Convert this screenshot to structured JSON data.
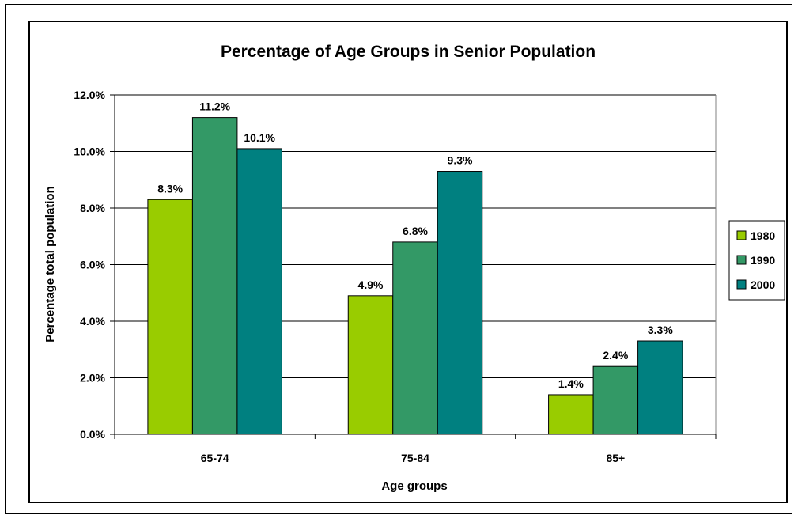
{
  "chart_data": {
    "type": "bar",
    "title": "Percentage of Age Groups in Senior Population",
    "xlabel": "Age groups",
    "ylabel": "Percentage total population",
    "categories": [
      "65-74",
      "75-84",
      "85+"
    ],
    "series": [
      {
        "name": "1980",
        "color": "#99cc00",
        "values": [
          8.3,
          4.9,
          1.4
        ],
        "labels": [
          "8.3%",
          "4.9%",
          "1.4%"
        ]
      },
      {
        "name": "1990",
        "color": "#339966",
        "values": [
          11.2,
          6.8,
          2.4
        ],
        "labels": [
          "11.2%",
          "6.8%",
          "2.4%"
        ]
      },
      {
        "name": "2000",
        "color": "#008080",
        "values": [
          10.1,
          9.3,
          3.3
        ],
        "labels": [
          "10.1%",
          "9.3%",
          "3.3%"
        ]
      }
    ],
    "ylim": [
      0,
      12
    ],
    "yticks": [
      0,
      2,
      4,
      6,
      8,
      10,
      12
    ],
    "ytick_labels": [
      "0.0%",
      "2.0%",
      "4.0%",
      "6.0%",
      "8.0%",
      "10.0%",
      "12.0%"
    ],
    "grid": true,
    "legend_position": "right"
  }
}
